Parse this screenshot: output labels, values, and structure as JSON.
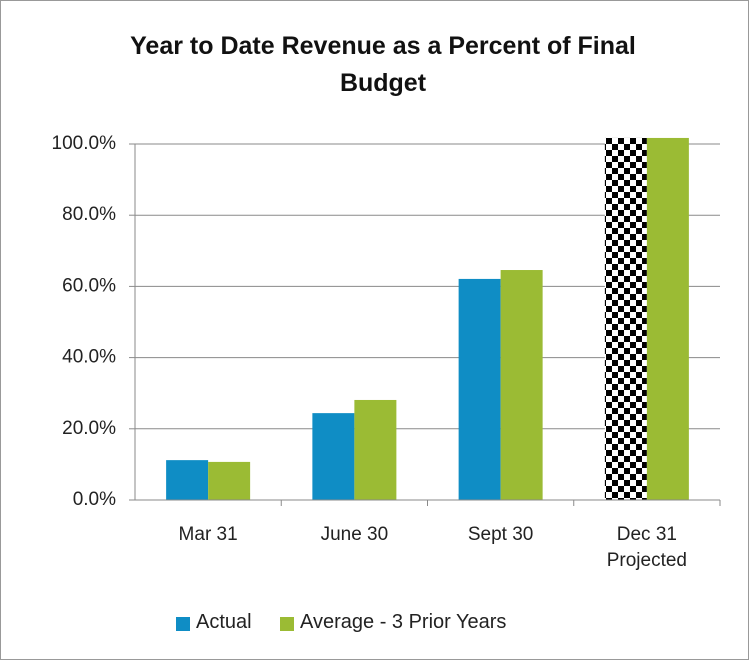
{
  "chart_data": {
    "type": "bar",
    "title": "Year to Date Revenue as a Percent of Final Budget",
    "categories": [
      "Mar 31",
      "June 30",
      "Sept 30",
      "Dec 31\nProjected"
    ],
    "series": [
      {
        "name": "Actual",
        "color": "#0f8dc5",
        "values": [
          11.2,
          24.4,
          62.1,
          101.7
        ],
        "patterns": [
          null,
          null,
          null,
          "checker"
        ]
      },
      {
        "name": "Average - 3 Prior Years",
        "color": "#9bbb34",
        "values": [
          10.7,
          28.1,
          64.6,
          101.7
        ]
      }
    ],
    "ylim": [
      0,
      100
    ],
    "yticks": [
      {
        "value": 0,
        "label": "0.0%"
      },
      {
        "value": 20,
        "label": "20.0%"
      },
      {
        "value": 40,
        "label": "40.0%"
      },
      {
        "value": 60,
        "label": "60.0%"
      },
      {
        "value": 80,
        "label": "80.0%"
      },
      {
        "value": 100,
        "label": "100.0%"
      }
    ],
    "grid": true,
    "legend": "bottom"
  }
}
